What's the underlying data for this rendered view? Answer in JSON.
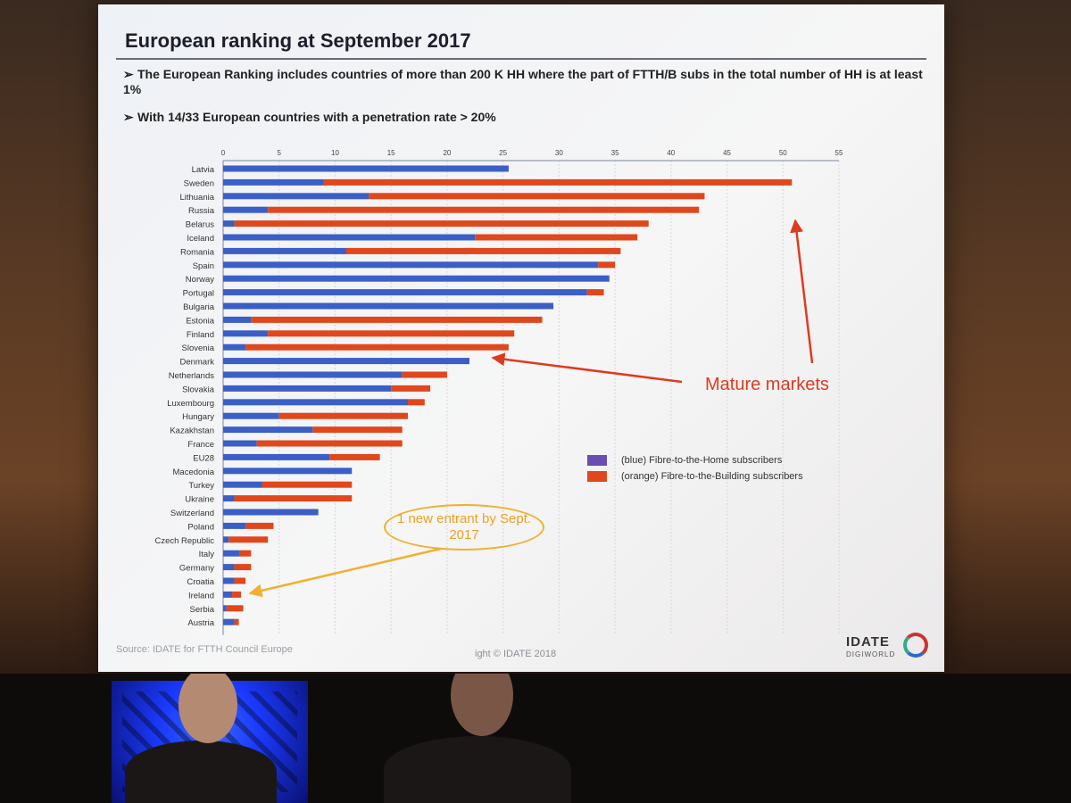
{
  "slide": {
    "title": "European ranking at September 2017",
    "bullets": [
      "The European Ranking includes countries of more than 200 K HH where the part of FTTH/B subs in the total number of HH is at least 1%",
      "With 14/33 European countries with a penetration rate > 20%"
    ],
    "source": "Source: IDATE for FTTH Council Europe",
    "copyright": "ight © IDATE 2018",
    "logo_text": "IDATE",
    "logo_sub": "DIGIWORLD",
    "annotation_mature": "Mature markets",
    "annotation_new_entrant": "1 new entrant by Sept. 2017"
  },
  "colors": {
    "ftth": "#3b5fc6",
    "fttb": "#e0471c",
    "arrow_red": "#e03a1e",
    "arrow_orange": "#f0b030"
  },
  "chart_data": {
    "type": "bar",
    "orientation": "horizontal",
    "stacked": true,
    "xlim": [
      0,
      55
    ],
    "xticks": [
      0,
      5,
      10,
      15,
      20,
      25,
      30,
      35,
      40,
      45,
      50,
      55
    ],
    "grid": true,
    "categories": [
      "Latvia",
      "Sweden",
      "Lithuania",
      "Russia",
      "Belarus",
      "Iceland",
      "Romania",
      "Spain",
      "Norway",
      "Portugal",
      "Bulgaria",
      "Estonia",
      "Finland",
      "Slovenia",
      "Denmark",
      "Netherlands",
      "Slovakia",
      "Luxembourg",
      "Hungary",
      "Kazakhstan",
      "France",
      "EU28",
      "Macedonia",
      "Turkey",
      "Ukraine",
      "Switzerland",
      "Poland",
      "Czech Republic",
      "Italy",
      "Germany",
      "Croatia",
      "Ireland",
      "Serbia",
      "Austria"
    ],
    "series": [
      {
        "name": "(blue) Fibre-to-the-Home subscribers",
        "values": [
          25.5,
          9.0,
          13.0,
          4.0,
          1.0,
          22.5,
          11.0,
          33.5,
          34.5,
          32.5,
          29.5,
          2.5,
          4.0,
          2.0,
          22.0,
          16.0,
          15.0,
          16.5,
          5.0,
          8.0,
          3.0,
          9.5,
          11.5,
          3.5,
          1.0,
          8.5,
          2.0,
          0.5,
          1.5,
          1.0,
          1.0,
          0.8,
          0.3,
          1.0
        ]
      },
      {
        "name": "(orange) Fibre-to-the-Building subscribers",
        "values": [
          0.0,
          41.8,
          30.0,
          38.5,
          37.0,
          14.5,
          24.5,
          1.5,
          0.0,
          1.5,
          0.0,
          26.0,
          22.0,
          23.5,
          0.0,
          4.0,
          3.5,
          1.5,
          11.5,
          8.0,
          13.0,
          4.5,
          0.0,
          8.0,
          10.5,
          0.0,
          2.5,
          3.5,
          1.0,
          1.5,
          1.0,
          0.8,
          1.5,
          0.4
        ]
      }
    ],
    "legend_placement": "right"
  }
}
